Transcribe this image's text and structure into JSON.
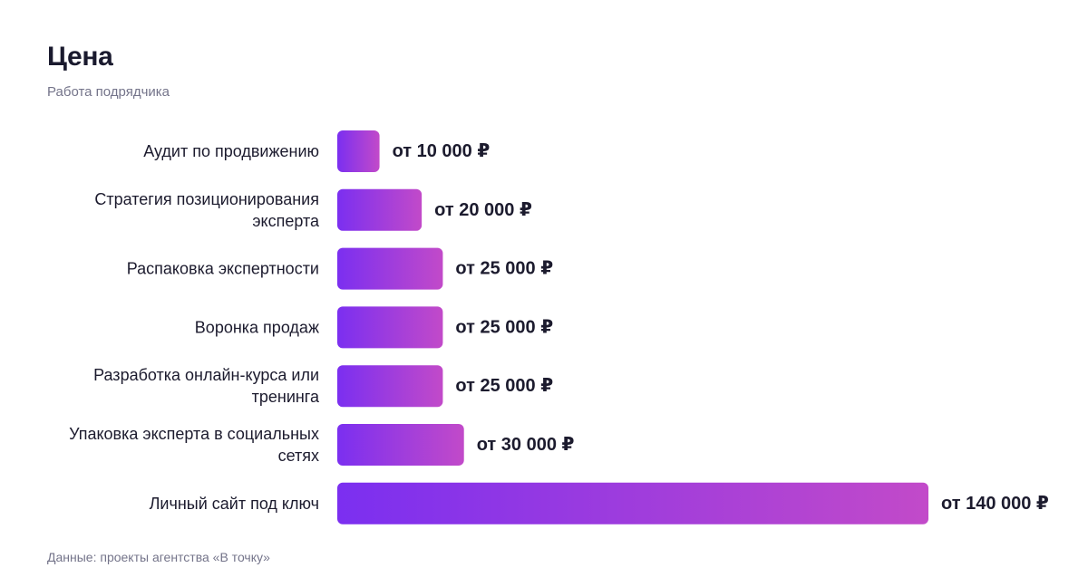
{
  "title": "Цена",
  "subtitle": "Работа подрядчика",
  "footnote": "Данные: проекты агентства «В точку»",
  "colors": {
    "bar_gradient_start": "#7b2ff0",
    "bar_gradient_end": "#c24ac9",
    "text": "#1c1b2e",
    "muted_text": "#74748a"
  },
  "chart_data": {
    "type": "bar",
    "orientation": "horizontal",
    "categories": [
      [
        "Аудит по продвижению"
      ],
      [
        "Стратегия позиционирования",
        "эксперта"
      ],
      [
        "Распаковка экспертности"
      ],
      [
        "Воронка продаж"
      ],
      [
        "Разработка онлайн-курса или",
        "тренинга"
      ],
      [
        "Упаковка эксперта в социальных",
        "сетях"
      ],
      [
        "Личный сайт под ключ"
      ]
    ],
    "values": [
      10000,
      20000,
      25000,
      25000,
      25000,
      30000,
      140000
    ],
    "value_labels": [
      "от 10 000 ₽",
      "от 20 000 ₽",
      "от 25 000 ₽",
      "от 25 000 ₽",
      "от 25 000 ₽",
      "от 30 000 ₽",
      "от 140 000 ₽"
    ],
    "xlim": [
      0,
      140000
    ],
    "grid": false,
    "legend": "none"
  }
}
